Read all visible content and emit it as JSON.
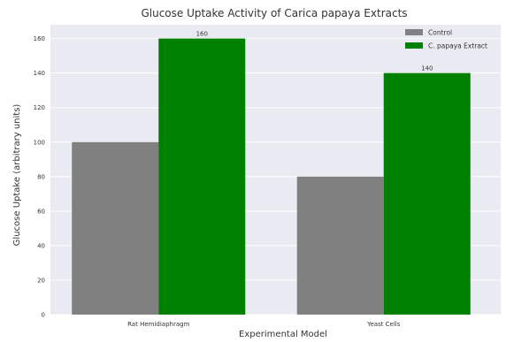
{
  "chart_data": {
    "type": "bar",
    "title": "Glucose Uptake Activity of Carica papaya Extracts",
    "xlabel": "Experimental Model",
    "ylabel": "Glucose Uptake (arbitrary units)",
    "categories": [
      "Rat Hemidiaphragm",
      "Yeast Cells"
    ],
    "series": [
      {
        "name": "Control",
        "values": [
          100,
          80
        ],
        "color": "#808080"
      },
      {
        "name": "C. papaya Extract",
        "values": [
          160,
          140
        ],
        "color": "#008000"
      }
    ],
    "data_labels": [
      {
        "series": 1,
        "category": 0,
        "text": "160"
      },
      {
        "series": 1,
        "category": 1,
        "text": "140"
      }
    ],
    "ylim": [
      0,
      168
    ],
    "yticks": [
      0,
      20,
      40,
      60,
      80,
      100,
      120,
      140,
      160
    ],
    "grid": true,
    "legend_position": "top-right",
    "background": "#eaeaf2"
  }
}
